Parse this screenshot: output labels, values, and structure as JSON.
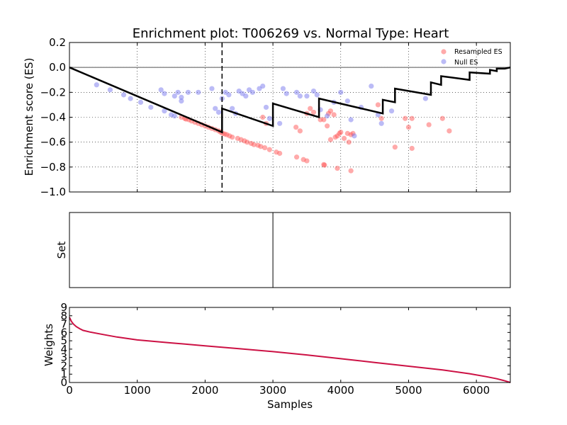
{
  "chart_data": [
    {
      "type": "scatter",
      "title": "Enrichment plot: T006269 vs. Normal Type: Heart",
      "xlabel": "",
      "ylabel": "Enrichment score (ES)",
      "xlim": [
        0,
        6500
      ],
      "ylim": [
        -1.0,
        0.2
      ],
      "yticks": [
        "0.2",
        "0.0",
        "−0.2",
        "−0.4",
        "−0.6",
        "−0.8",
        "−1.0"
      ],
      "ytick_values": [
        0.2,
        0.0,
        -0.2,
        -0.4,
        -0.6,
        -0.8,
        -1.0
      ],
      "grid": true,
      "legend": {
        "position": "top-right",
        "entries": [
          "Resampled ES",
          "Null ES"
        ]
      },
      "vline_x": 2250,
      "series": [
        {
          "name": "Resampled ES",
          "color": "#ff5555",
          "points": [
            [
              1650,
              -0.4
            ],
            [
              1700,
              -0.41
            ],
            [
              1720,
              -0.415
            ],
            [
              1760,
              -0.42
            ],
            [
              1800,
              -0.43
            ],
            [
              1850,
              -0.44
            ],
            [
              1900,
              -0.45
            ],
            [
              1950,
              -0.46
            ],
            [
              2000,
              -0.47
            ],
            [
              2050,
              -0.48
            ],
            [
              2100,
              -0.49
            ],
            [
              2150,
              -0.5
            ],
            [
              2200,
              -0.51
            ],
            [
              2230,
              -0.52
            ],
            [
              2260,
              -0.53
            ],
            [
              2290,
              -0.535
            ],
            [
              2320,
              -0.54
            ],
            [
              2360,
              -0.55
            ],
            [
              2400,
              -0.56
            ],
            [
              2480,
              -0.57
            ],
            [
              2530,
              -0.58
            ],
            [
              2580,
              -0.59
            ],
            [
              2620,
              -0.6
            ],
            [
              2680,
              -0.61
            ],
            [
              2720,
              -0.62
            ],
            [
              2780,
              -0.625
            ],
            [
              2820,
              -0.635
            ],
            [
              2880,
              -0.645
            ],
            [
              2950,
              -0.66
            ],
            [
              3050,
              -0.68
            ],
            [
              3100,
              -0.69
            ],
            [
              3350,
              -0.72
            ],
            [
              3450,
              -0.74
            ],
            [
              3500,
              -0.75
            ],
            [
              3750,
              -0.78
            ],
            [
              3760,
              -0.785
            ],
            [
              3950,
              -0.81
            ],
            [
              4150,
              -0.83
            ],
            [
              2850,
              -0.4
            ],
            [
              2900,
              -0.45
            ],
            [
              3340,
              -0.48
            ],
            [
              3400,
              -0.51
            ],
            [
              3500,
              -0.37
            ],
            [
              3550,
              -0.33
            ],
            [
              3600,
              -0.36
            ],
            [
              3700,
              -0.42
            ],
            [
              3800,
              -0.47
            ],
            [
              3850,
              -0.35
            ],
            [
              3900,
              -0.38
            ],
            [
              3850,
              -0.58
            ],
            [
              3920,
              -0.56
            ],
            [
              3950,
              -0.55
            ],
            [
              3980,
              -0.53
            ],
            [
              4000,
              -0.52
            ],
            [
              4050,
              -0.57
            ],
            [
              4100,
              -0.53
            ],
            [
              4120,
              -0.6
            ],
            [
              4150,
              -0.54
            ],
            [
              4180,
              -0.53
            ],
            [
              4550,
              -0.3
            ],
            [
              4600,
              -0.41
            ],
            [
              4800,
              -0.64
            ],
            [
              4950,
              -0.41
            ],
            [
              5000,
              -0.48
            ],
            [
              5050,
              -0.41
            ],
            [
              5050,
              -0.65
            ],
            [
              5300,
              -0.46
            ],
            [
              5500,
              -0.41
            ],
            [
              5600,
              -0.51
            ],
            [
              3750,
              -0.42
            ],
            [
              3820,
              -0.37
            ]
          ]
        },
        {
          "name": "Null ES",
          "color": "#7777ee",
          "points": [
            [
              400,
              -0.14
            ],
            [
              600,
              -0.18
            ],
            [
              800,
              -0.22
            ],
            [
              900,
              -0.25
            ],
            [
              1050,
              -0.28
            ],
            [
              1200,
              -0.32
            ],
            [
              1400,
              -0.35
            ],
            [
              1500,
              -0.38
            ],
            [
              1550,
              -0.39
            ],
            [
              1350,
              -0.18
            ],
            [
              1400,
              -0.21
            ],
            [
              1550,
              -0.23
            ],
            [
              1600,
              -0.2
            ],
            [
              1650,
              -0.24
            ],
            [
              1650,
              -0.27
            ],
            [
              1750,
              -0.2
            ],
            [
              1900,
              -0.2
            ],
            [
              2100,
              -0.17
            ],
            [
              2150,
              -0.33
            ],
            [
              2200,
              -0.36
            ],
            [
              2250,
              -0.25
            ],
            [
              2300,
              -0.2
            ],
            [
              2350,
              -0.22
            ],
            [
              2400,
              -0.33
            ],
            [
              2450,
              -0.37
            ],
            [
              2500,
              -0.19
            ],
            [
              2550,
              -0.21
            ],
            [
              2600,
              -0.23
            ],
            [
              2650,
              -0.18
            ],
            [
              2700,
              -0.2
            ],
            [
              2800,
              -0.17
            ],
            [
              2850,
              -0.15
            ],
            [
              2900,
              -0.32
            ],
            [
              2950,
              -0.41
            ],
            [
              3100,
              -0.45
            ],
            [
              3150,
              -0.17
            ],
            [
              3200,
              -0.21
            ],
            [
              3350,
              -0.2
            ],
            [
              3400,
              -0.23
            ],
            [
              3500,
              -0.23
            ],
            [
              3600,
              -0.19
            ],
            [
              3650,
              -0.22
            ],
            [
              3700,
              -0.34
            ],
            [
              3800,
              -0.39
            ],
            [
              3900,
              -0.28
            ],
            [
              4000,
              -0.2
            ],
            [
              4100,
              -0.27
            ],
            [
              4150,
              -0.42
            ],
            [
              4200,
              -0.55
            ],
            [
              4300,
              -0.32
            ],
            [
              4450,
              -0.15
            ],
            [
              4550,
              -0.38
            ],
            [
              4600,
              -0.45
            ],
            [
              4750,
              -0.35
            ],
            [
              5250,
              -0.25
            ]
          ]
        }
      ],
      "es_curve": [
        [
          0,
          0.0
        ],
        [
          2250,
          -0.52
        ],
        [
          2250,
          -0.33
        ],
        [
          3000,
          -0.47
        ],
        [
          3000,
          -0.29
        ],
        [
          3680,
          -0.4
        ],
        [
          3680,
          -0.25
        ],
        [
          4620,
          -0.37
        ],
        [
          4620,
          -0.26
        ],
        [
          4800,
          -0.28
        ],
        [
          4800,
          -0.17
        ],
        [
          5330,
          -0.22
        ],
        [
          5330,
          -0.12
        ],
        [
          5480,
          -0.14
        ],
        [
          5480,
          -0.07
        ],
        [
          5900,
          -0.1
        ],
        [
          5900,
          -0.04
        ],
        [
          6200,
          -0.05
        ],
        [
          6200,
          -0.02
        ],
        [
          6300,
          -0.03
        ],
        [
          6300,
          -0.01
        ],
        [
          6420,
          -0.01
        ],
        [
          6500,
          0.0
        ]
      ]
    },
    {
      "type": "line",
      "title": "",
      "xlabel": "",
      "ylabel": "Set",
      "xlim": [
        0,
        6500
      ],
      "ylim": [
        0,
        1
      ],
      "set_hits_x": [
        3000
      ]
    },
    {
      "type": "line",
      "title": "",
      "xlabel": "Samples",
      "ylabel": "Weights",
      "xlim": [
        0,
        6500
      ],
      "ylim": [
        0,
        9
      ],
      "xticks": [
        "0",
        "1000",
        "2000",
        "3000",
        "4000",
        "5000",
        "6000"
      ],
      "xtick_values": [
        0,
        1000,
        2000,
        3000,
        4000,
        5000,
        6000
      ],
      "yticks": [
        "0",
        "1",
        "2",
        "3",
        "4",
        "5",
        "6",
        "7",
        "8",
        "9"
      ],
      "ytick_values": [
        0,
        1,
        2,
        3,
        4,
        5,
        6,
        7,
        8,
        9
      ],
      "color": "#cc1144",
      "points": [
        [
          0,
          7.8
        ],
        [
          30,
          7.3
        ],
        [
          60,
          7.0
        ],
        [
          100,
          6.7
        ],
        [
          150,
          6.45
        ],
        [
          200,
          6.25
        ],
        [
          300,
          6.05
        ],
        [
          500,
          5.75
        ],
        [
          700,
          5.45
        ],
        [
          1000,
          5.1
        ],
        [
          1500,
          4.75
        ],
        [
          2000,
          4.4
        ],
        [
          2500,
          4.05
        ],
        [
          3000,
          3.7
        ],
        [
          3500,
          3.3
        ],
        [
          4000,
          2.85
        ],
        [
          4500,
          2.4
        ],
        [
          5000,
          1.95
        ],
        [
          5500,
          1.5
        ],
        [
          5900,
          1.05
        ],
        [
          6150,
          0.7
        ],
        [
          6300,
          0.45
        ],
        [
          6400,
          0.25
        ],
        [
          6460,
          0.1
        ],
        [
          6500,
          0.0
        ]
      ]
    }
  ]
}
